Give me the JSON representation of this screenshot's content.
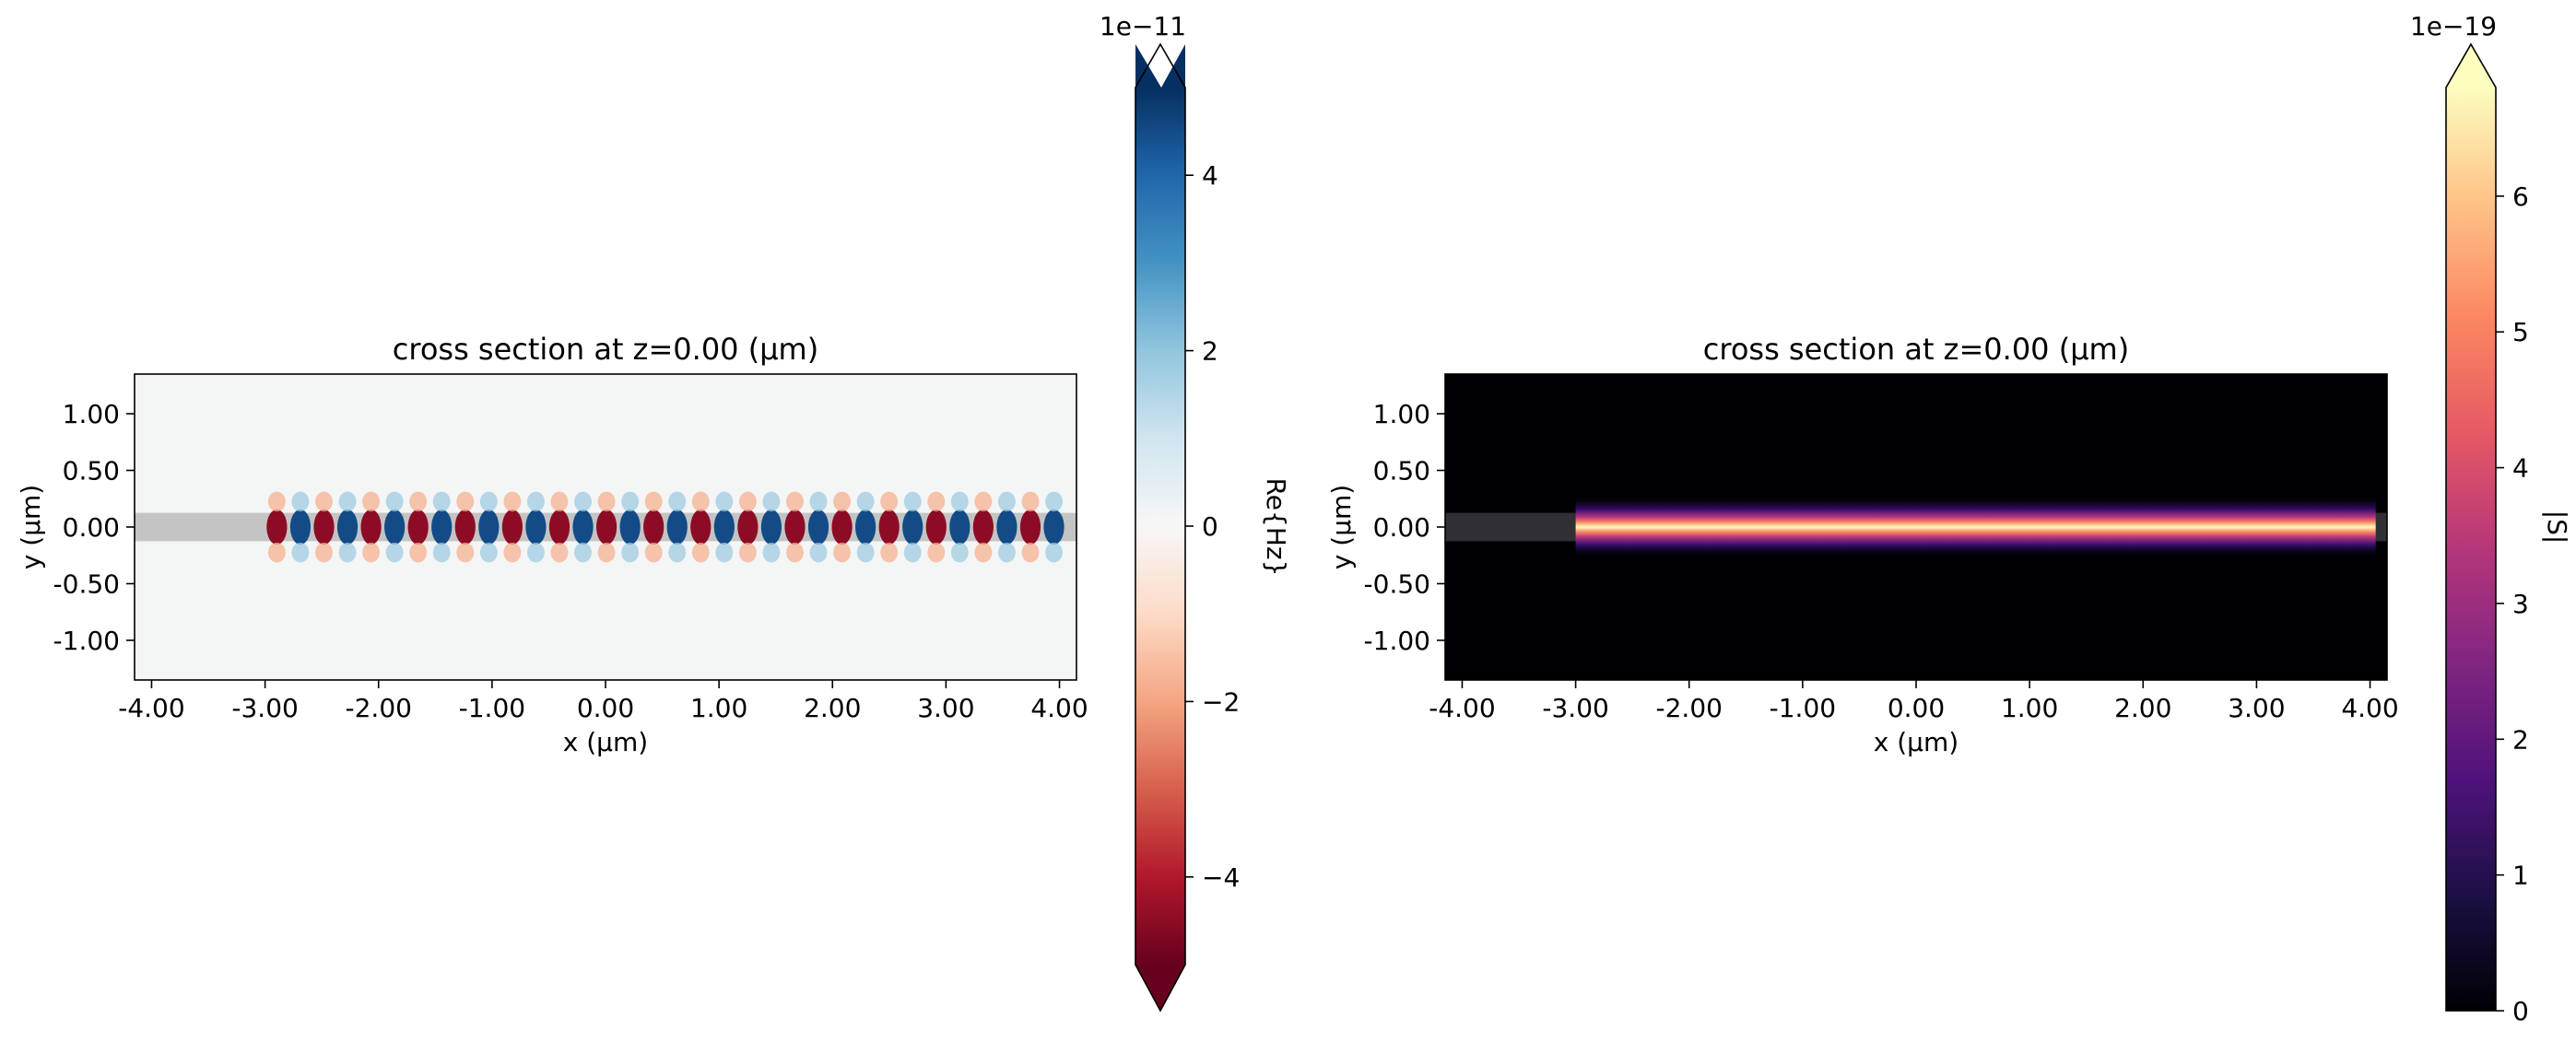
{
  "chart_data": [
    {
      "type": "heatmap",
      "title": "cross section at z=0.00 (μm)",
      "xlabel": "x (μm)",
      "ylabel": "y (μm)",
      "xlim": [
        -4.15,
        4.15
      ],
      "ylim": [
        -1.35,
        1.35
      ],
      "xticks": [
        -4.0,
        -3.0,
        -2.0,
        -1.0,
        0.0,
        1.0,
        2.0,
        3.0,
        4.0
      ],
      "xtick_labels": [
        "-4.00",
        "-3.00",
        "-2.00",
        "-1.00",
        "0.00",
        "1.00",
        "2.00",
        "3.00",
        "4.00"
      ],
      "yticks": [
        1.0,
        0.5,
        0.0,
        -0.5,
        -1.0
      ],
      "ytick_labels": [
        "1.00",
        "0.50",
        "0.00",
        "-0.50",
        "-1.00"
      ],
      "field": "Re{Hz}",
      "colormap": "RdBu",
      "colorbar": {
        "label": "Re{Hz}",
        "range": [
          -5,
          5
        ],
        "extend": "both",
        "offset_text": "1e−11",
        "ticks": [
          4,
          2,
          0,
          -2,
          -4
        ],
        "tick_labels": [
          "4",
          "2",
          "0",
          "−2",
          "−4"
        ]
      },
      "waveguide": {
        "y_center": 0.0,
        "width": 0.25,
        "color": "#c4c4c4"
      },
      "source_x": -3.0,
      "field_x_end": 4.05,
      "period_um": 0.415,
      "background": "#f4f5f5"
    },
    {
      "type": "heatmap",
      "title": "cross section at z=0.00 (μm)",
      "xlabel": "x (μm)",
      "ylabel": "y (μm)",
      "xlim": [
        -4.15,
        4.15
      ],
      "ylim": [
        -1.35,
        1.35
      ],
      "xticks": [
        -4.0,
        -3.0,
        -2.0,
        -1.0,
        0.0,
        1.0,
        2.0,
        3.0,
        4.0
      ],
      "xtick_labels": [
        "-4.00",
        "-3.00",
        "-2.00",
        "-1.00",
        "0.00",
        "1.00",
        "2.00",
        "3.00",
        "4.00"
      ],
      "yticks": [
        1.0,
        0.5,
        0.0,
        -0.5,
        -1.0
      ],
      "ytick_labels": [
        "1.00",
        "0.50",
        "0.00",
        "-0.50",
        "-1.00"
      ],
      "field": "|S|",
      "colormap": "magma",
      "colorbar": {
        "label": "|S|",
        "range": [
          0,
          6.8
        ],
        "extend": "max",
        "offset_text": "1e−19",
        "ticks": [
          6,
          5,
          4,
          3,
          2,
          1,
          0
        ],
        "tick_labels": [
          "6",
          "5",
          "4",
          "3",
          "2",
          "1",
          "0"
        ]
      },
      "waveguide": {
        "y_center": 0.0,
        "width": 0.25,
        "color": "#303034"
      },
      "source_x": -3.0,
      "field_x_end": 4.05,
      "background": "#000004"
    }
  ]
}
